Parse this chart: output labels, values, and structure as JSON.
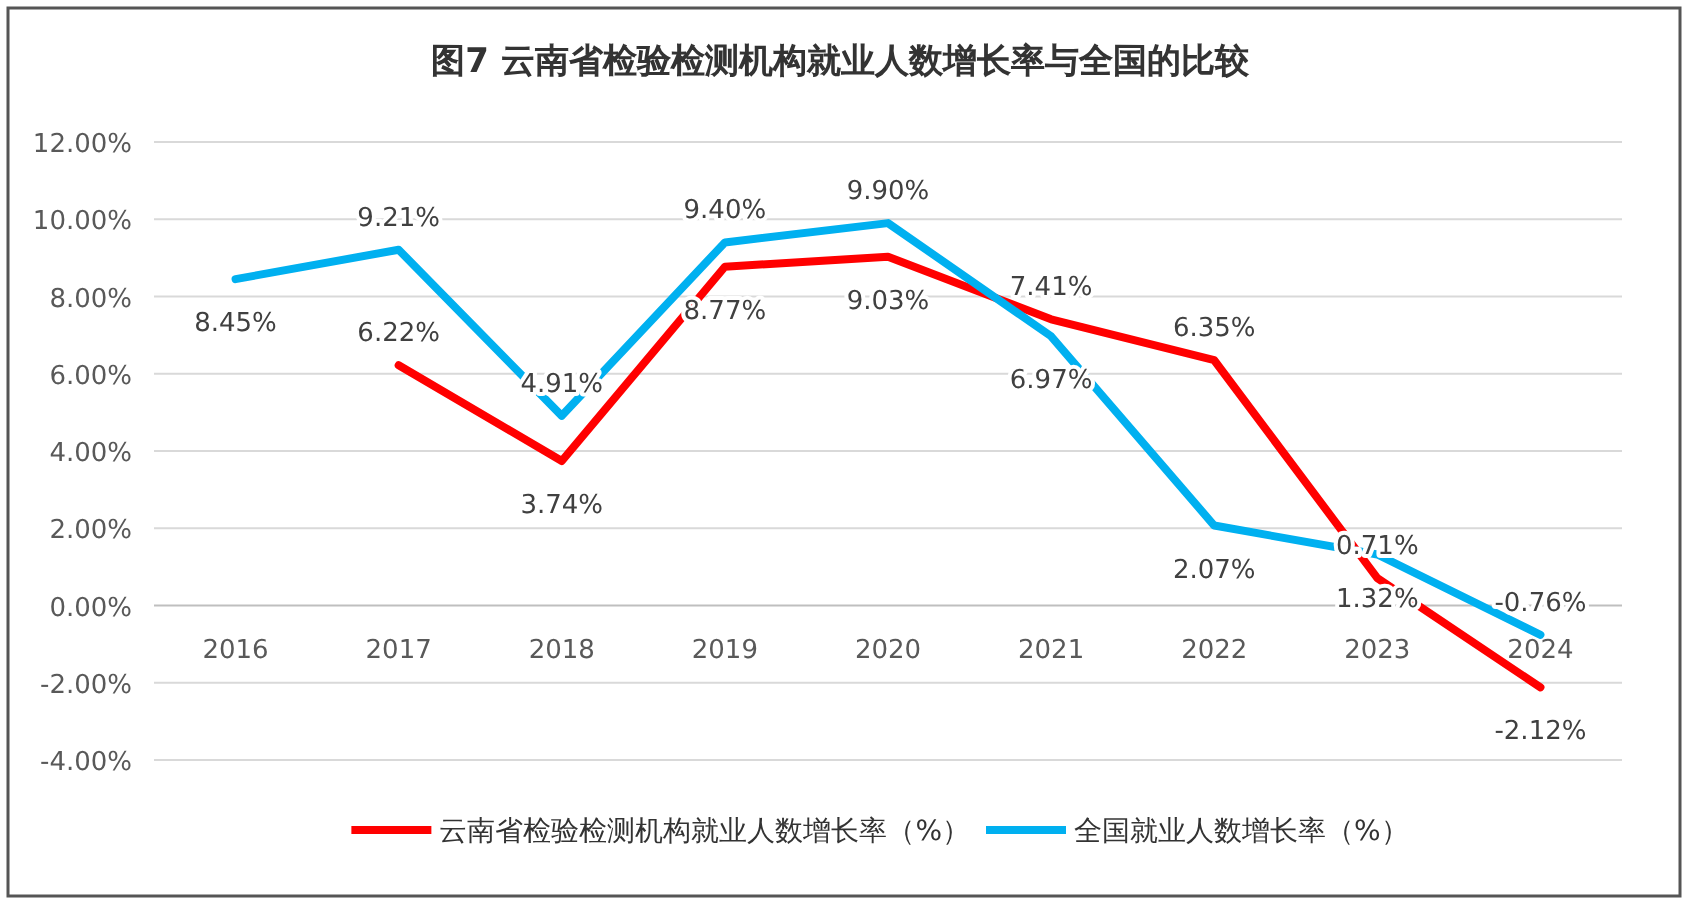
{
  "chart_data": {
    "type": "line",
    "title": "图7  云南省检验检测机构就业人数增长率与全国的比较",
    "categories": [
      "2016",
      "2017",
      "2018",
      "2019",
      "2020",
      "2021",
      "2022",
      "2023",
      "2024"
    ],
    "series": [
      {
        "name": "云南省检验检测机构就业人数增长率（%）",
        "color": "#ff0000",
        "values": [
          null,
          6.22,
          3.74,
          8.77,
          9.03,
          7.41,
          6.35,
          0.71,
          -2.12
        ],
        "value_labels": [
          null,
          "6.22%",
          "3.74%",
          "8.77%",
          "9.03%",
          "7.41%",
          "6.35%",
          "0.71%",
          "-2.12%"
        ]
      },
      {
        "name": "全国就业人数增长率（%）",
        "color": "#00b0f0",
        "values": [
          8.45,
          9.21,
          4.91,
          9.4,
          9.9,
          6.97,
          2.07,
          1.32,
          -0.76
        ],
        "value_labels": [
          "8.45%",
          "9.21%",
          "4.91%",
          "9.40%",
          "9.90%",
          "6.97%",
          "2.07%",
          "1.32%",
          "-0.76%"
        ]
      }
    ],
    "ylim": [
      -4,
      12
    ],
    "yticks": [
      {
        "value": -4,
        "label": "-4.00%"
      },
      {
        "value": -2,
        "label": "-2.00%"
      },
      {
        "value": 0,
        "label": "0.00%"
      },
      {
        "value": 2,
        "label": "2.00%"
      },
      {
        "value": 4,
        "label": "4.00%"
      },
      {
        "value": 6,
        "label": "6.00%"
      },
      {
        "value": 8,
        "label": "8.00%"
      },
      {
        "value": 10,
        "label": "10.00%"
      },
      {
        "value": 12,
        "label": "12.00%"
      }
    ],
    "grid": "y",
    "legend": "bottom",
    "marker": "none",
    "line_style": "solid"
  }
}
